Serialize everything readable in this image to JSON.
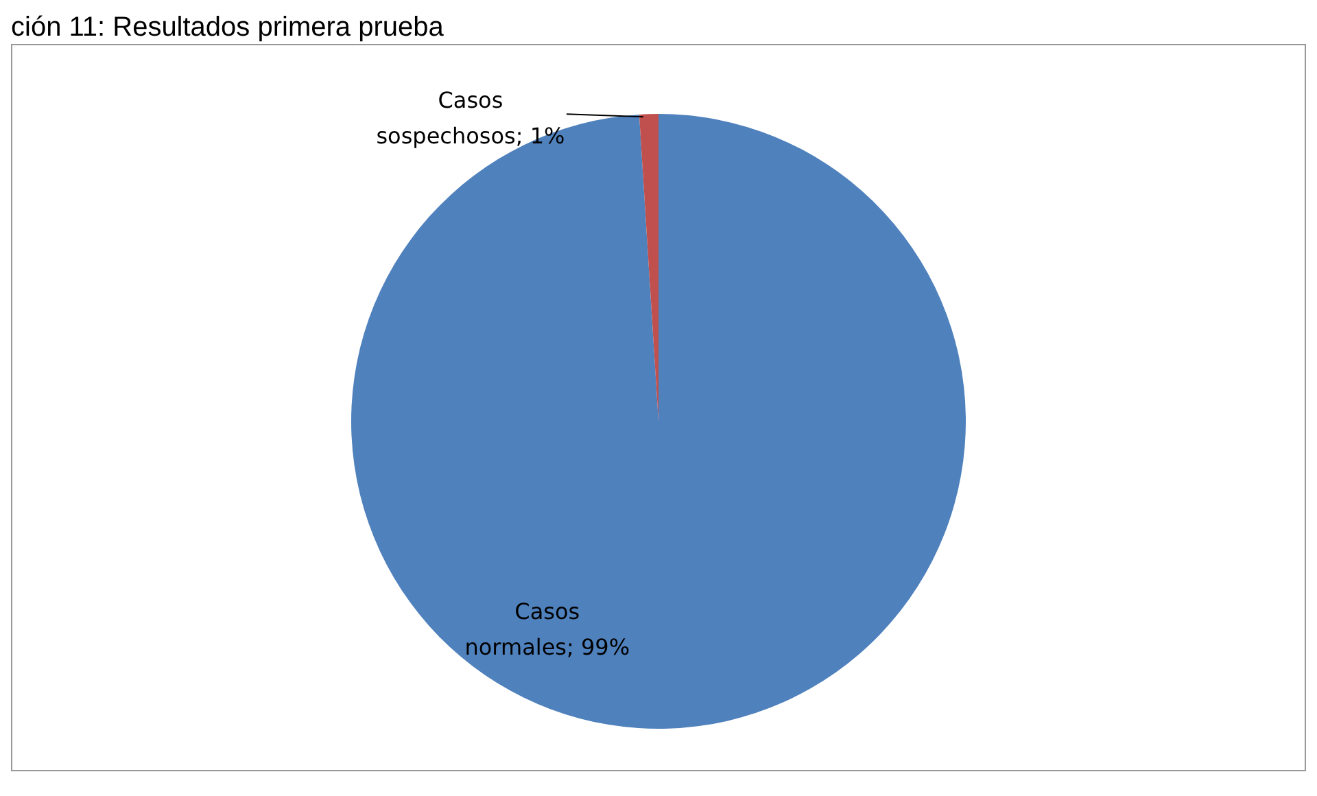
{
  "chart_data": {
    "type": "pie",
    "title": "ción 11: Resultados primera prueba",
    "categories": [
      "Casos normales",
      "Casos sospechosos"
    ],
    "value_labels": [
      "99%",
      "1%"
    ],
    "values": [
      99,
      1
    ],
    "colors": [
      "#4f81bd",
      "#c0504d"
    ],
    "legend": false
  }
}
